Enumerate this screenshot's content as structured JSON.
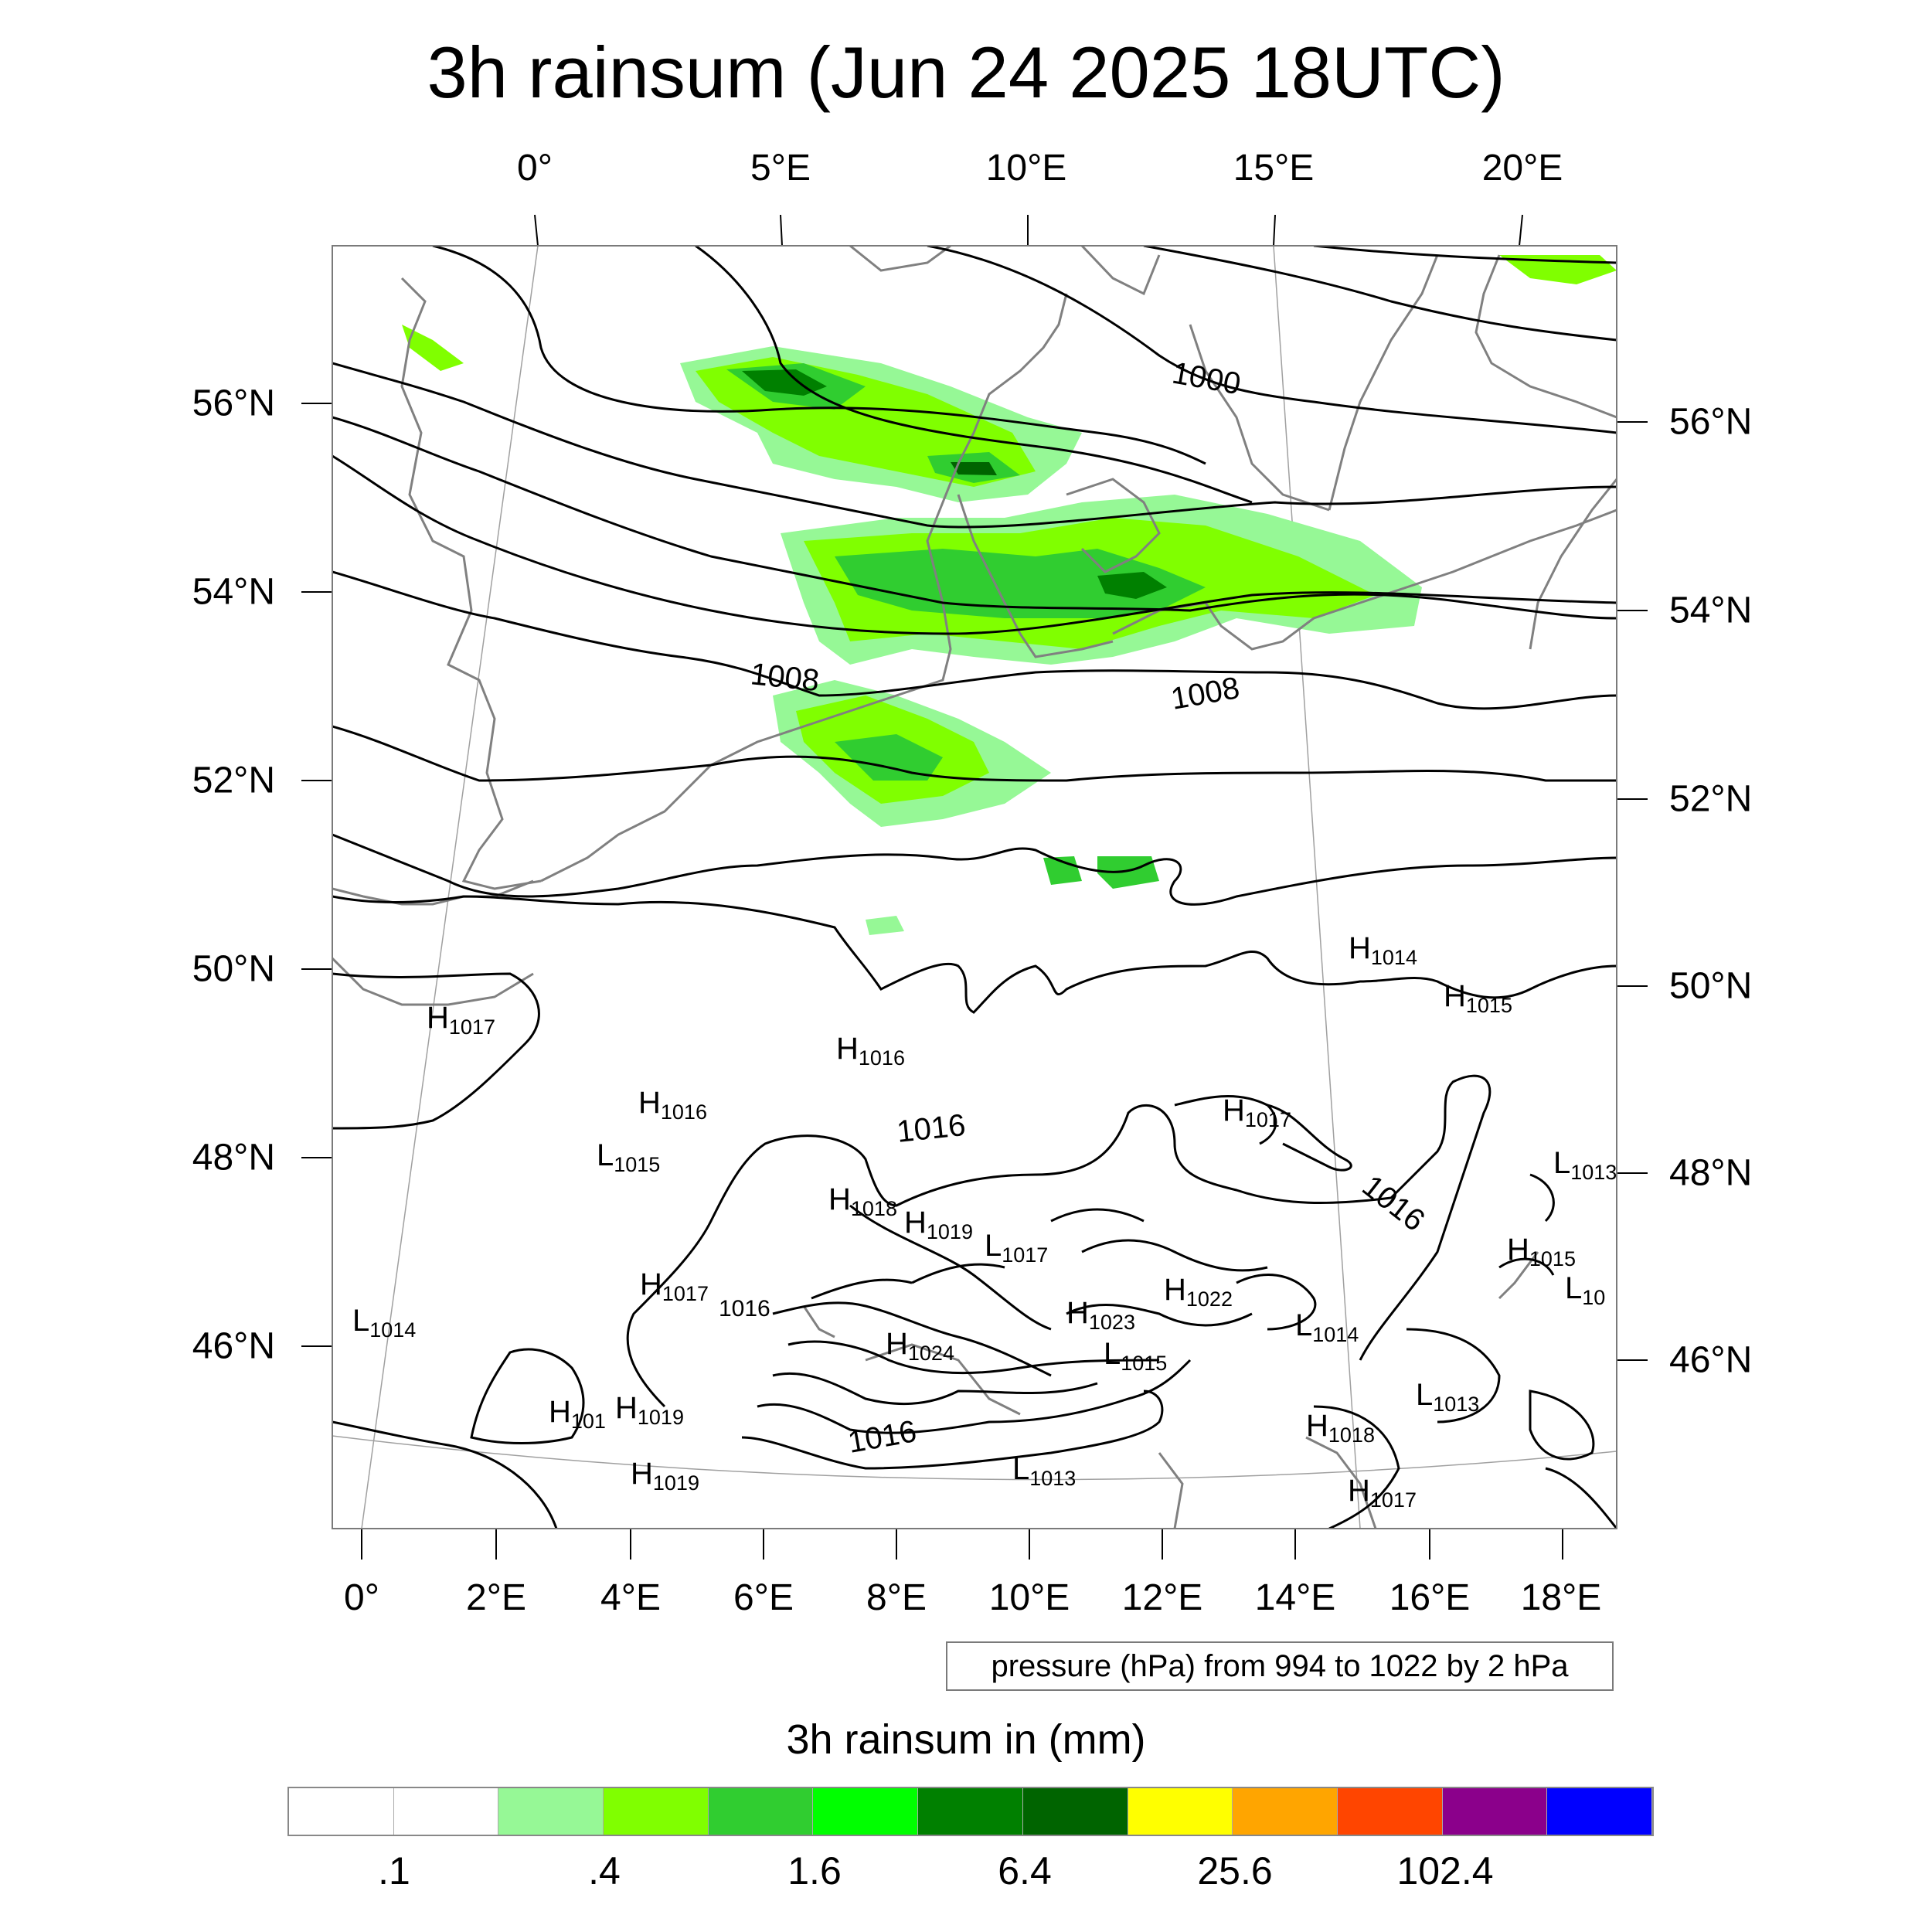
{
  "title": "3h rainsum (Jun 24 2025 18UTC)",
  "top_lon_labels": [
    "0°",
    "5°E",
    "10°E",
    "15°E",
    "20°E"
  ],
  "bottom_lon_labels": [
    "0°",
    "2°E",
    "4°E",
    "6°E",
    "8°E",
    "10°E",
    "12°E",
    "14°E",
    "16°E",
    "18°E"
  ],
  "left_lat_labels": [
    "56°N",
    "54°N",
    "52°N",
    "50°N",
    "48°N",
    "46°N"
  ],
  "right_lat_labels": [
    "56°N",
    "54°N",
    "52°N",
    "50°N",
    "48°N",
    "46°N"
  ],
  "isobar_labels": [
    "1000",
    "1008",
    "1008",
    "1016",
    "1016",
    "1016",
    "1016"
  ],
  "pressure_centers": [
    {
      "type": "H",
      "value": "1014"
    },
    {
      "type": "H",
      "value": "1015"
    },
    {
      "type": "H",
      "value": "1017"
    },
    {
      "type": "H",
      "value": "1016"
    },
    {
      "type": "H",
      "value": "1016"
    },
    {
      "type": "H",
      "value": "1017"
    },
    {
      "type": "L",
      "value": "1015"
    },
    {
      "type": "L",
      "value": "1013"
    },
    {
      "type": "H",
      "value": "1018"
    },
    {
      "type": "H",
      "value": "1019"
    },
    {
      "type": "L",
      "value": "1017"
    },
    {
      "type": "H",
      "value": "1015"
    },
    {
      "type": "L",
      "value": "10"
    },
    {
      "type": "H",
      "value": "1017"
    },
    {
      "type": "H",
      "value": "1023"
    },
    {
      "type": "H",
      "value": "1022"
    },
    {
      "type": "L",
      "value": "1014"
    },
    {
      "type": "H",
      "value": "1024"
    },
    {
      "type": "L",
      "value": "1015"
    },
    {
      "type": "L",
      "value": "1014"
    },
    {
      "type": "H",
      "value": "101"
    },
    {
      "type": "H",
      "value": "1019"
    },
    {
      "type": "L",
      "value": "1013"
    },
    {
      "type": "H",
      "value": "1018"
    },
    {
      "type": "H",
      "value": "1019"
    },
    {
      "type": "L",
      "value": "1013"
    },
    {
      "type": "H",
      "value": "1017"
    }
  ],
  "isobar_info": "pressure (hPa) from 994 to 1022 by 2 hPa",
  "legend_title": "3h rainsum in (mm)",
  "colorbar_colors": [
    "#ffffff",
    "#ffffff",
    "#96f896",
    "#80ff00",
    "#30cd30",
    "#00ff00",
    "#008000",
    "#006400",
    "#ffff00",
    "#ffa500",
    "#ff4500",
    "#8b008b",
    "#0000ff"
  ],
  "colorbar_labels": [
    ".1",
    ".4",
    "1.6",
    "6.4",
    "25.6",
    "102.4"
  ],
  "colors": {
    "isobar": "#000000",
    "coastline": "#808080",
    "graticule": "#a0a0a0"
  }
}
